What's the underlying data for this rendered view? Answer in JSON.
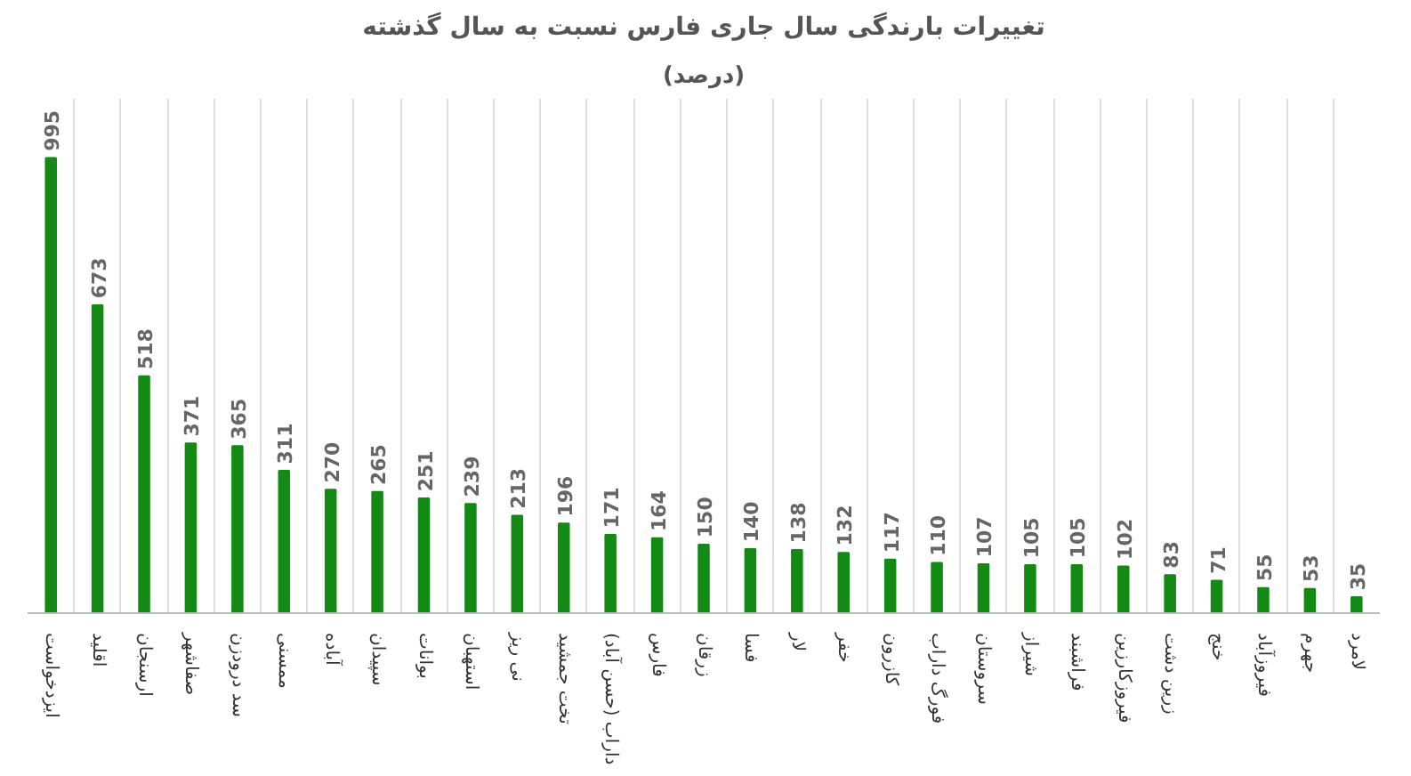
{
  "chart_data": {
    "type": "bar",
    "title": "تغییرات بارندگی سال جاری فارس نسبت به سال گذشته",
    "subtitle": "(درصد)",
    "categories": [
      "ایزدخواست",
      "اقلید",
      "ارسنجان",
      "صفاشهر",
      "سد درودزن",
      "ممسنی",
      "آباده",
      "سپیدان",
      "بوانات",
      "استهبان",
      "نی ریز",
      "تخت جمشید",
      "داراب (حسن آباد)",
      "فارس",
      "زرقان",
      "فسا",
      "لار",
      "خفر",
      "کازرون",
      "فورگ داراب",
      "سروستان",
      "شیراز",
      "فراشبند",
      "فیروزکارزین",
      "زرین دشت",
      "خنج",
      "فیروزآباد",
      "جهرم",
      "لامرد"
    ],
    "values": [
      995,
      673,
      518,
      371,
      365,
      311,
      270,
      265,
      251,
      239,
      213,
      196,
      171,
      164,
      150,
      140,
      138,
      132,
      117,
      110,
      107,
      105,
      105,
      102,
      83,
      71,
      55,
      53,
      35
    ],
    "color": "#138a13",
    "data_labels": true,
    "grid": "x"
  }
}
